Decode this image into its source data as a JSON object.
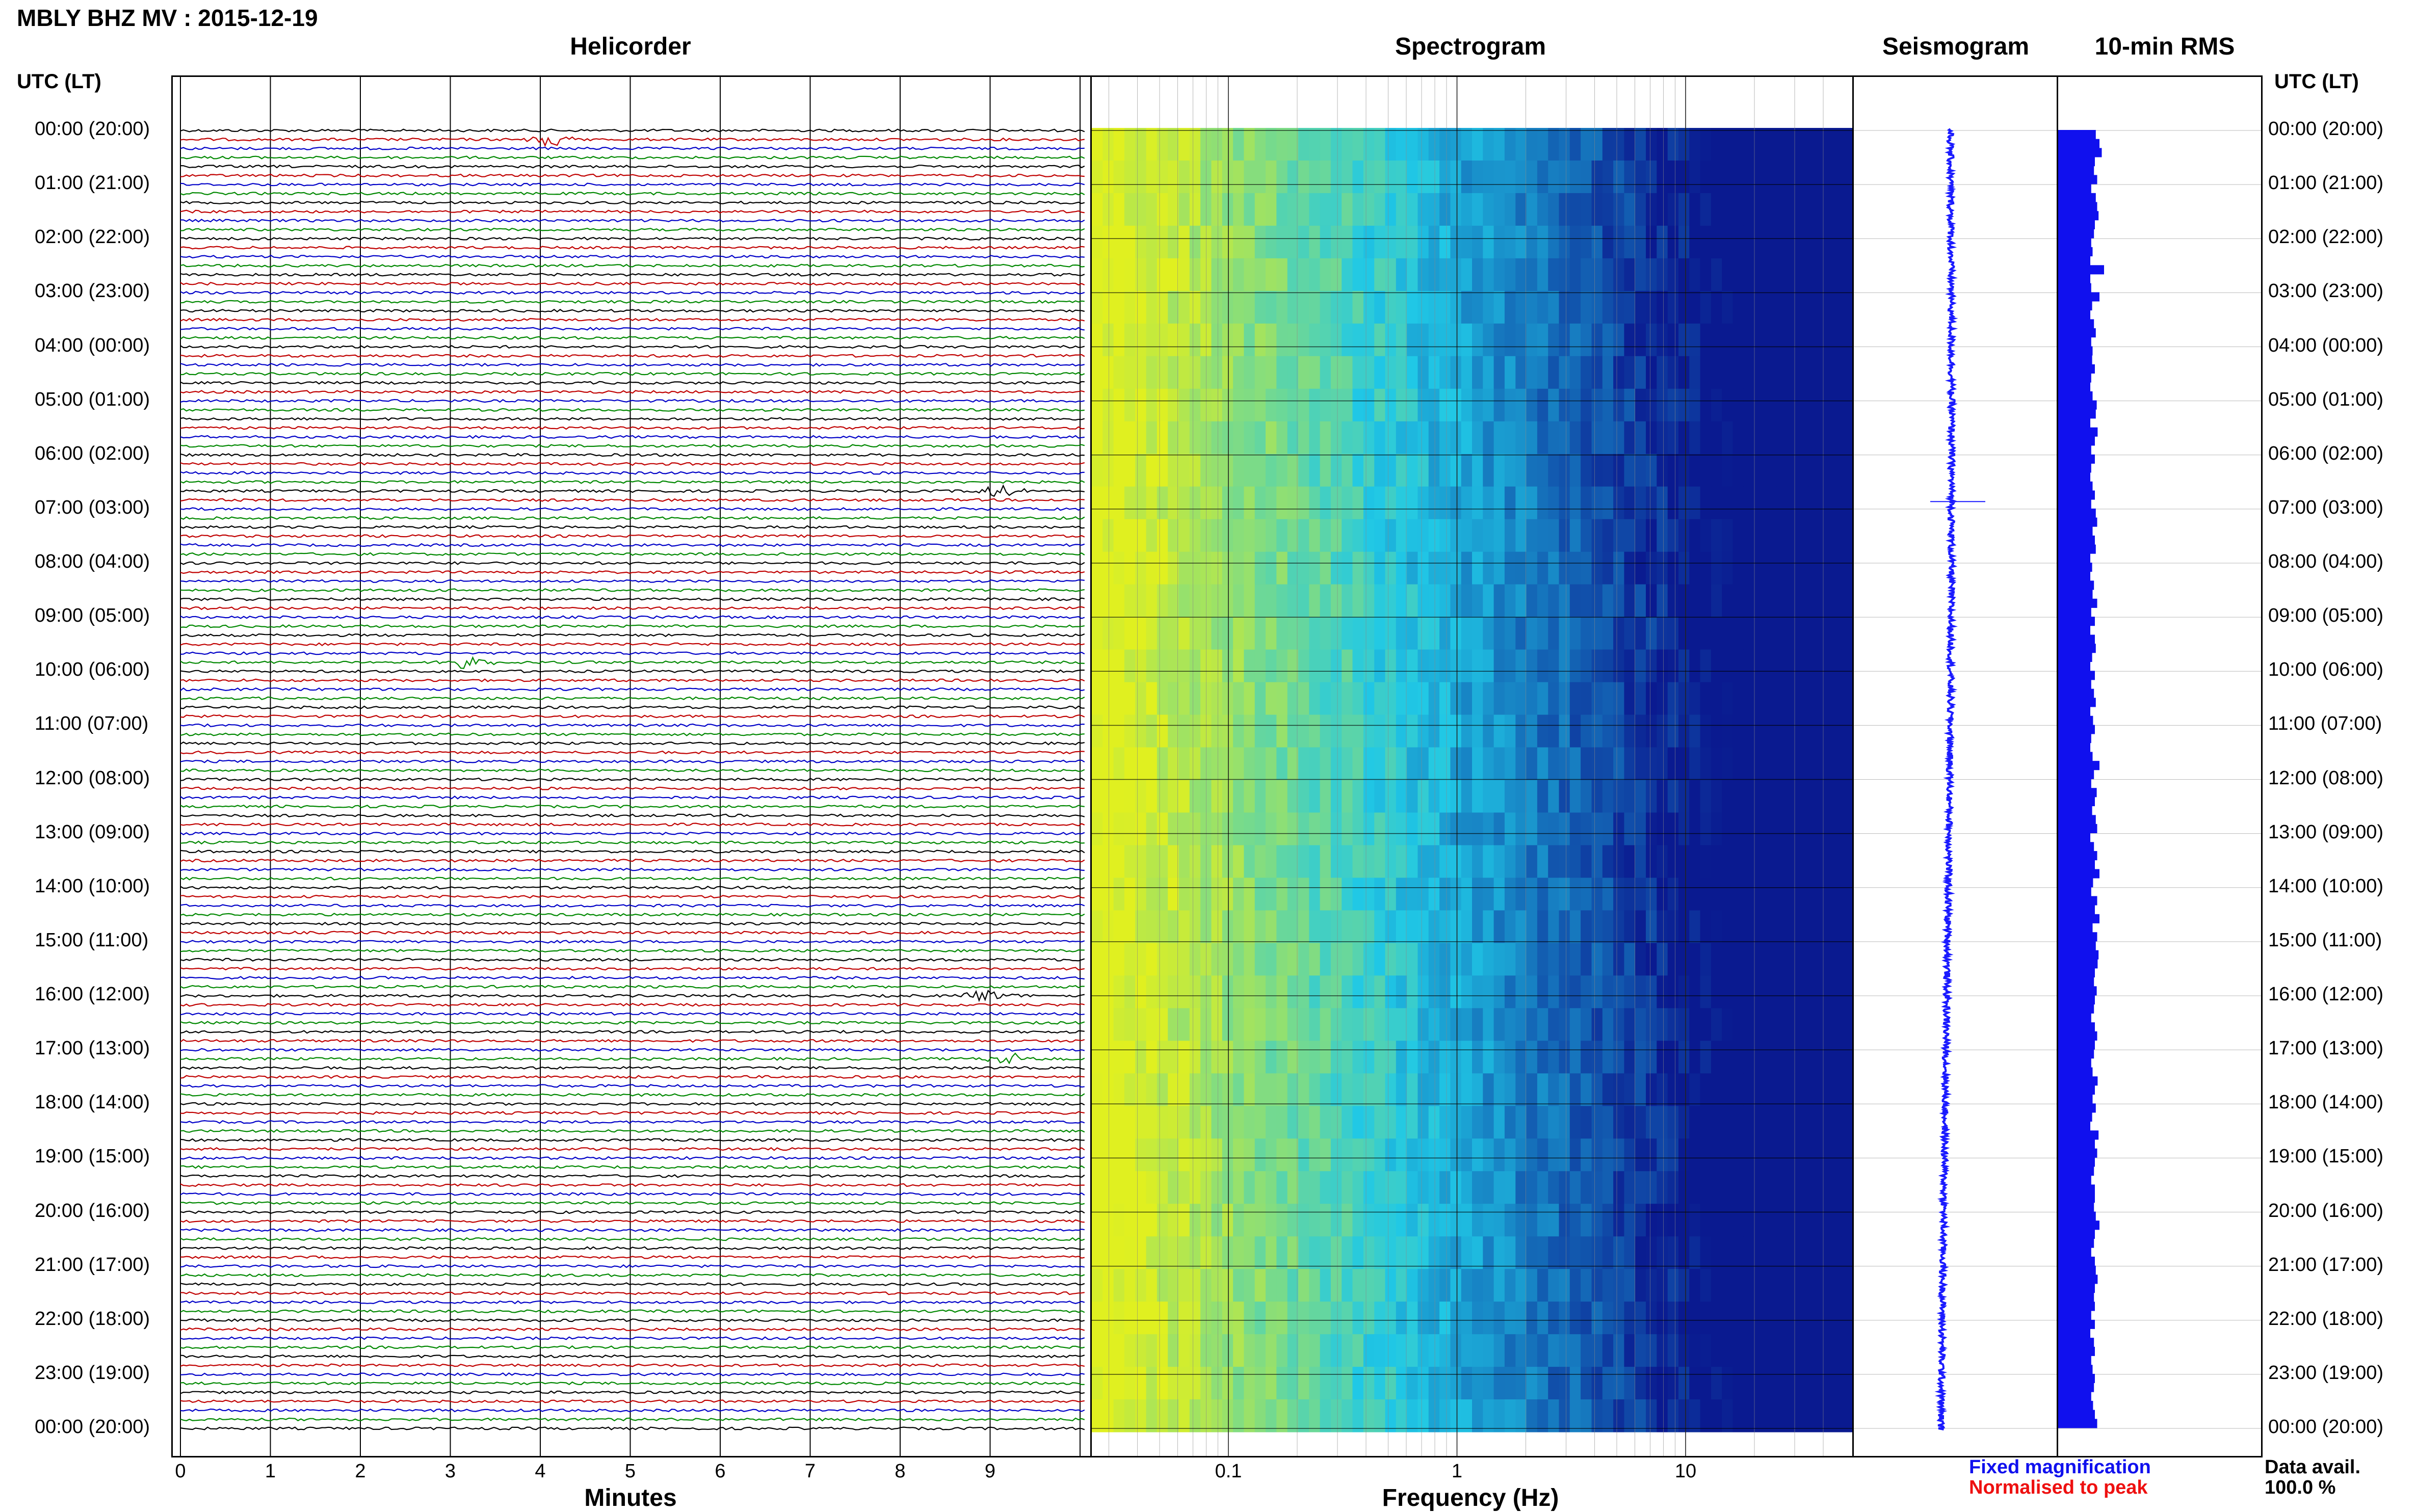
{
  "header": {
    "title": "MBLY BHZ MV : 2015-12-19",
    "utc_label": "UTC (LT)"
  },
  "panels": {
    "helicorder": "Helicorder",
    "spectrogram": "Spectrogram",
    "seismogram": "Seismogram",
    "rms": "10-min RMS"
  },
  "time_labels": [
    "00:00 (20:00)",
    "01:00 (21:00)",
    "02:00 (22:00)",
    "03:00 (23:00)",
    "04:00 (00:00)",
    "05:00 (01:00)",
    "06:00 (02:00)",
    "07:00 (03:00)",
    "08:00 (04:00)",
    "09:00 (05:00)",
    "10:00 (06:00)",
    "11:00 (07:00)",
    "12:00 (08:00)",
    "13:00 (09:00)",
    "14:00 (10:00)",
    "15:00 (11:00)",
    "16:00 (12:00)",
    "17:00 (13:00)",
    "18:00 (14:00)",
    "19:00 (15:00)",
    "20:00 (16:00)",
    "21:00 (17:00)",
    "22:00 (18:00)",
    "23:00 (19:00)",
    "00:00 (20:00)"
  ],
  "footer": {
    "fixed_magnification": "Fixed magnification",
    "normalised_to_peak": "Normalised to peak",
    "data_avail_label": "Data avail.",
    "data_avail_value": "100.0 %"
  },
  "colors": {
    "trace_cycle": [
      "#000000",
      "#c00000",
      "#0000c8",
      "#008800"
    ],
    "seismogram": "#1a1aff",
    "rms_bar": "#1010ee",
    "spectrogram_low": "#e0f020",
    "spectrogram_high": "#0a1a90"
  },
  "chart_data": [
    {
      "type": "line",
      "name": "helicorder",
      "title": "Helicorder",
      "xlabel": "Minutes",
      "x_ticks": [
        "0",
        "1",
        "2",
        "3",
        "4",
        "5",
        "6",
        "7",
        "8",
        "9"
      ],
      "xlim": [
        0,
        10
      ],
      "rows_per_hour": 6,
      "events": [
        {
          "time_utc": "00:10",
          "minute": 4.1
        },
        {
          "time_utc": "06:40",
          "minute": 9.1
        },
        {
          "time_utc": "09:50",
          "minute": 3.2
        },
        {
          "time_utc": "16:00",
          "minute": 9.0
        },
        {
          "time_utc": "17:10",
          "minute": 9.2
        }
      ]
    },
    {
      "type": "heatmap",
      "name": "spectrogram",
      "title": "Spectrogram",
      "xlabel": "Frequency (Hz)",
      "x_scale": "log",
      "x_ticks": [
        "0.1",
        "1",
        "10"
      ],
      "xlim": [
        0.01,
        50
      ]
    },
    {
      "type": "line",
      "name": "seismogram",
      "title": "Seismogram",
      "spike_time_utc": "06:50"
    },
    {
      "type": "bar",
      "name": "rms",
      "title": "10-min RMS",
      "orientation": "horizontal",
      "values_relative": [
        0.82,
        0.9,
        0.95,
        0.8,
        0.78,
        0.85,
        0.72,
        0.82,
        0.85,
        0.88,
        0.8,
        0.78,
        0.72,
        0.75,
        0.7,
        1.0,
        0.7,
        0.72,
        0.9,
        0.74,
        0.7,
        0.78,
        0.82,
        0.72,
        0.75,
        0.74,
        0.8,
        0.72,
        0.7,
        0.75,
        0.84,
        0.82,
        0.7,
        0.86,
        0.8,
        0.72,
        0.8,
        0.72,
        0.7,
        0.75,
        0.8,
        0.72,
        0.82,
        0.85,
        0.75,
        0.8,
        0.82,
        0.7,
        0.74,
        0.7,
        0.78,
        0.75,
        0.85,
        0.72,
        0.8,
        0.7,
        0.8,
        0.82,
        0.74,
        0.7,
        0.8,
        0.72,
        0.78,
        0.82,
        0.7,
        0.76,
        0.8,
        0.72,
        0.7,
        0.75,
        0.9,
        0.78,
        0.72,
        0.84,
        0.8,
        0.74,
        0.82,
        0.85,
        0.7,
        0.78,
        0.85,
        0.8,
        0.9,
        0.76,
        0.72,
        0.85,
        0.8,
        0.9,
        0.75,
        0.85,
        0.82,
        0.88,
        0.86,
        0.8,
        0.78,
        0.84,
        0.8,
        0.78,
        0.72,
        0.8,
        0.85,
        0.8,
        0.78,
        0.72,
        0.75,
        0.86,
        0.8,
        0.75,
        0.82,
        0.74,
        0.7,
        0.88,
        0.8,
        0.85,
        0.8,
        0.78,
        0.72,
        0.8,
        0.8,
        0.78,
        0.82,
        0.9,
        0.8,
        0.78,
        0.72,
        0.8,
        0.82,
        0.86,
        0.8,
        0.78,
        0.8,
        0.72,
        0.8,
        0.7,
        0.78,
        0.8,
        0.72,
        0.75,
        0.8,
        0.78,
        0.72,
        0.76,
        0.8,
        0.85
      ]
    }
  ]
}
